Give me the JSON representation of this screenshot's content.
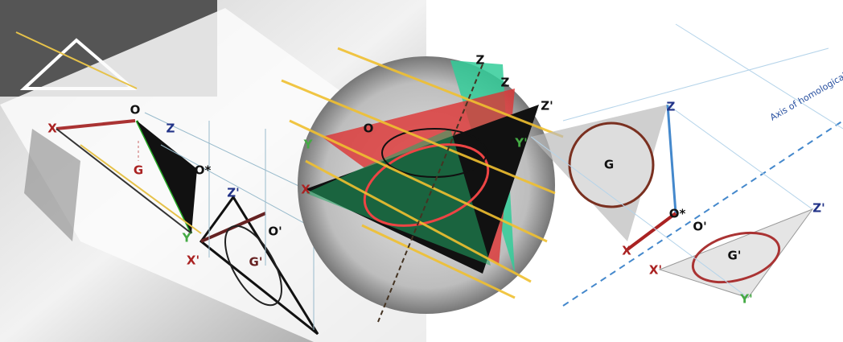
{
  "labels": [
    "X",
    "O",
    "Z",
    "G",
    "O*",
    "Z'",
    "Y",
    "X'",
    "G'",
    "O'",
    "Z",
    "Z",
    "Z'",
    "O",
    "Y",
    "X",
    "Y'",
    "Z",
    "G",
    "O*",
    "O'",
    "Z'",
    "X",
    "X'",
    "G'",
    "Y'"
  ],
  "axis_label": "Axis of homological affinity"
}
